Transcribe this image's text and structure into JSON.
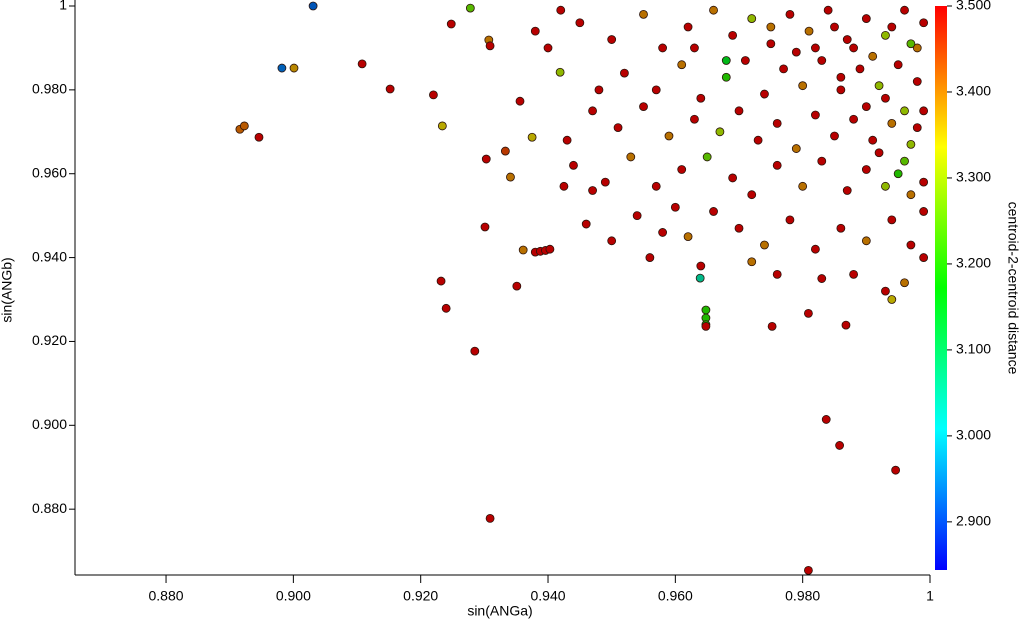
{
  "chart_data": {
    "type": "scatter",
    "x_label": "sin(ANGa)",
    "y_label": "sin(ANGb)",
    "colorbar_label": "centroid-2-centroid distance",
    "xlim": [
      0.8657,
      1.0
    ],
    "ylim": [
      0.8643,
      1.0
    ],
    "xticks": [
      {
        "value": 0.88,
        "label": "0.880"
      },
      {
        "value": 0.9,
        "label": "0.900"
      },
      {
        "value": 0.92,
        "label": "0.920"
      },
      {
        "value": 0.94,
        "label": "0.940"
      },
      {
        "value": 0.96,
        "label": "0.960"
      },
      {
        "value": 0.98,
        "label": "0.980"
      },
      1
    ],
    "yticks": [
      {
        "value": 0.88,
        "label": "0.880"
      },
      {
        "value": 0.9,
        "label": "0.900"
      },
      {
        "value": 0.92,
        "label": "0.920"
      },
      {
        "value": 0.94,
        "label": "0.940"
      },
      {
        "value": 0.96,
        "label": "0.960"
      },
      {
        "value": 0.98,
        "label": "0.980"
      },
      1
    ],
    "clim": [
      2.844,
      3.5
    ],
    "cticks": [
      {
        "value": 2.9,
        "label": "2.900"
      },
      {
        "value": 3.0,
        "label": "3.000"
      },
      {
        "value": 3.1,
        "label": "3.100"
      },
      {
        "value": 3.2,
        "label": "3.200"
      },
      {
        "value": 3.3,
        "label": "3.300"
      },
      {
        "value": 3.4,
        "label": "3.400"
      },
      {
        "value": 3.5,
        "label": "3.500"
      }
    ],
    "colormap": [
      "#0000ff",
      "#00ffff",
      "#00ff00",
      "#ffff00",
      "#ff0000"
    ],
    "x": [
      0.9031,
      0.8982,
      0.9001,
      0.8916,
      0.8923,
      0.8946,
      0.9108,
      0.9152,
      0.922,
      0.9234,
      0.9248,
      0.9278,
      0.9307,
      0.9309,
      0.9232,
      0.924,
      0.9285,
      0.9301,
      0.9309,
      0.9303,
      0.9333,
      0.9341,
      0.9351,
      0.9361,
      0.9356,
      0.9375,
      0.938,
      0.9388,
      0.9396,
      0.9403,
      0.9419,
      0.9425,
      0.9639,
      0.9648,
      0.9648,
      0.9648,
      0.9648,
      0.9752,
      0.9809,
      0.9868,
      0.9837,
      0.9858,
      0.9946,
      0.9809,
      0.945,
      0.95,
      0.955,
      0.958,
      0.962,
      0.966,
      0.969,
      0.972,
      0.975,
      0.978,
      0.981,
      0.984,
      0.987,
      0.99,
      0.993,
      0.996,
      0.998,
      0.952,
      0.957,
      0.961,
      0.964,
      0.968,
      0.971,
      0.974,
      0.977,
      0.98,
      0.983,
      0.986,
      0.989,
      0.992,
      0.995,
      0.998,
      0.947,
      0.951,
      0.955,
      0.959,
      0.963,
      0.967,
      0.97,
      0.973,
      0.976,
      0.979,
      0.982,
      0.985,
      0.988,
      0.991,
      0.994,
      0.997,
      0.999,
      0.944,
      0.949,
      0.953,
      0.957,
      0.961,
      0.965,
      0.969,
      0.972,
      0.976,
      0.98,
      0.983,
      0.987,
      0.99,
      0.993,
      0.996,
      0.999,
      0.946,
      0.95,
      0.954,
      0.958,
      0.962,
      0.966,
      0.97,
      0.974,
      0.978,
      0.982,
      0.986,
      0.99,
      0.994,
      0.997,
      0.956,
      0.964,
      0.972,
      0.976,
      0.983,
      0.988,
      0.993,
      0.994,
      0.996,
      0.999,
      0.985,
      0.988,
      0.991,
      0.994,
      0.997,
      0.999,
      0.99,
      0.993,
      0.996,
      0.998,
      0.992,
      0.995,
      0.997,
      0.999,
      0.986,
      0.982,
      0.979,
      0.975,
      0.963,
      0.94,
      0.938,
      0.942,
      0.948,
      0.943,
      0.947,
      0.96,
      0.968
    ],
    "y": [
      1.0,
      0.9852,
      0.9852,
      0.9706,
      0.9714,
      0.9687,
      0.9862,
      0.9802,
      0.9788,
      0.9714,
      0.9957,
      0.9995,
      0.9919,
      0.9905,
      0.9344,
      0.9279,
      0.9177,
      0.9473,
      0.8778,
      0.9635,
      0.9654,
      0.9592,
      0.9332,
      0.9418,
      0.9773,
      0.9687,
      0.9413,
      0.9415,
      0.9417,
      0.942,
      0.9842,
      0.957,
      0.9351,
      0.9275,
      0.9256,
      0.924,
      0.9236,
      0.9236,
      0.9267,
      0.9239,
      0.9014,
      0.8952,
      0.8893,
      0.8654,
      0.996,
      0.992,
      0.998,
      0.99,
      0.995,
      0.999,
      0.993,
      0.997,
      0.991,
      0.998,
      0.994,
      0.999,
      0.992,
      0.997,
      0.993,
      0.999,
      0.99,
      0.984,
      0.98,
      0.986,
      0.978,
      0.983,
      0.987,
      0.979,
      0.985,
      0.981,
      0.987,
      0.98,
      0.985,
      0.981,
      0.986,
      0.982,
      0.975,
      0.971,
      0.976,
      0.969,
      0.973,
      0.97,
      0.975,
      0.968,
      0.972,
      0.966,
      0.974,
      0.969,
      0.973,
      0.968,
      0.972,
      0.967,
      0.975,
      0.962,
      0.958,
      0.964,
      0.957,
      0.961,
      0.964,
      0.959,
      0.955,
      0.962,
      0.957,
      0.963,
      0.956,
      0.961,
      0.957,
      0.963,
      0.958,
      0.948,
      0.944,
      0.95,
      0.946,
      0.945,
      0.951,
      0.947,
      0.943,
      0.949,
      0.942,
      0.947,
      0.944,
      0.949,
      0.943,
      0.94,
      0.938,
      0.939,
      0.936,
      0.935,
      0.936,
      0.932,
      0.93,
      0.934,
      0.94,
      0.995,
      0.99,
      0.988,
      0.995,
      0.991,
      0.996,
      0.976,
      0.978,
      0.975,
      0.971,
      0.965,
      0.96,
      0.955,
      0.951,
      0.983,
      0.99,
      0.989,
      0.995,
      0.99,
      0.99,
      0.994,
      0.999,
      0.98,
      0.968,
      0.956,
      0.952,
      0.987
    ],
    "c": [
      2.92,
      2.93,
      3.38,
      3.42,
      3.42,
      3.5,
      3.5,
      3.5,
      3.5,
      3.35,
      3.5,
      3.25,
      3.4,
      3.5,
      3.5,
      3.5,
      3.5,
      3.5,
      3.5,
      3.5,
      3.45,
      3.4,
      3.5,
      3.4,
      3.5,
      3.35,
      3.5,
      3.5,
      3.5,
      3.5,
      3.3,
      3.5,
      3.05,
      3.2,
      3.2,
      3.2,
      3.5,
      3.5,
      3.5,
      3.5,
      3.5,
      3.5,
      3.5,
      3.5,
      3.5,
      3.5,
      3.4,
      3.5,
      3.5,
      3.4,
      3.5,
      3.3,
      3.5,
      3.5,
      3.4,
      3.5,
      3.5,
      3.5,
      3.3,
      3.5,
      3.4,
      3.5,
      3.5,
      3.4,
      3.5,
      3.2,
      3.5,
      3.5,
      3.5,
      3.4,
      3.5,
      3.5,
      3.5,
      3.3,
      3.5,
      3.5,
      3.5,
      3.5,
      3.5,
      3.4,
      3.5,
      3.3,
      3.5,
      3.5,
      3.5,
      3.4,
      3.5,
      3.5,
      3.5,
      3.5,
      3.4,
      3.3,
      3.5,
      3.5,
      3.5,
      3.4,
      3.5,
      3.5,
      3.25,
      3.5,
      3.5,
      3.5,
      3.4,
      3.5,
      3.5,
      3.5,
      3.3,
      3.25,
      3.5,
      3.5,
      3.5,
      3.5,
      3.5,
      3.4,
      3.5,
      3.5,
      3.4,
      3.5,
      3.5,
      3.5,
      3.4,
      3.5,
      3.5,
      3.5,
      3.5,
      3.4,
      3.5,
      3.5,
      3.5,
      3.5,
      3.35,
      3.4,
      3.5,
      3.5,
      3.5,
      3.4,
      3.5,
      3.25,
      3.5,
      3.5,
      3.5,
      3.3,
      3.5,
      3.5,
      3.2,
      3.4,
      3.5,
      3.5,
      3.5,
      3.5,
      3.4,
      3.5,
      3.5,
      3.5,
      3.5,
      3.5,
      3.5,
      3.5,
      3.5,
      3.15
    ]
  }
}
